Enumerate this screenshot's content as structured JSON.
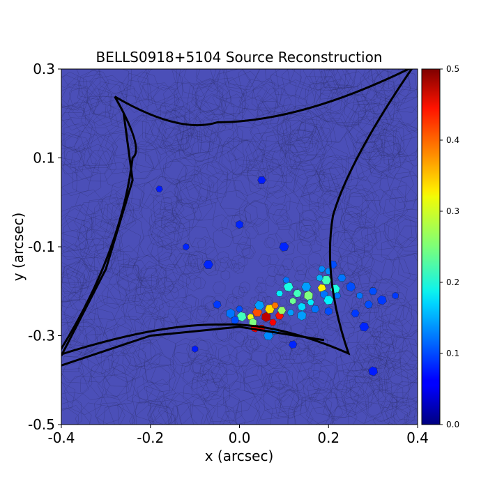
{
  "chart_data": {
    "type": "heatmap",
    "title": "BELLS0918+5104 Source Reconstruction",
    "xlabel": "x (arcsec)",
    "ylabel": "y (arcsec)",
    "xlim": [
      -0.4,
      0.4
    ],
    "ylim": [
      -0.5,
      0.3
    ],
    "xticks": [
      {
        "value": -0.4,
        "label": "-0.4"
      },
      {
        "value": -0.2,
        "label": "-0.2"
      },
      {
        "value": 0.0,
        "label": "0.0"
      },
      {
        "value": 0.2,
        "label": "0.2"
      },
      {
        "value": 0.4,
        "label": "0.4"
      }
    ],
    "yticks": [
      {
        "value": 0.3,
        "label": "0.3"
      },
      {
        "value": 0.1,
        "label": "0.1"
      },
      {
        "value": -0.1,
        "label": "-0.1"
      },
      {
        "value": -0.3,
        "label": "-0.3"
      },
      {
        "value": -0.5,
        "label": "-0.5"
      }
    ],
    "colorbar": {
      "colormap": "jet",
      "range": [
        0.0,
        0.5
      ],
      "ticks": [
        {
          "value": 0.5,
          "label": "0.5"
        },
        {
          "value": 0.4,
          "label": "0.4"
        },
        {
          "value": 0.3,
          "label": "0.3"
        },
        {
          "value": 0.2,
          "label": "0.2"
        },
        {
          "value": 0.1,
          "label": "0.1"
        },
        {
          "value": 0.0,
          "label": "0.0"
        }
      ]
    },
    "background_value": 0.05,
    "caustic": {
      "color": "#000000",
      "astroid": [
        [
          -0.28,
          0.238
        ],
        [
          -0.05,
          0.18
        ],
        [
          0.39,
          0.305
        ],
        [
          0.21,
          -0.03
        ],
        [
          0.245,
          -0.34
        ],
        [
          -0.04,
          -0.275
        ],
        [
          -0.41,
          -0.345
        ],
        [
          -0.24,
          0.1
        ],
        [
          -0.28,
          0.238
        ]
      ],
      "outer_segments": [
        [
          [
            0.19,
            -0.31
          ],
          [
            0.0,
            -0.28
          ],
          [
            -0.2,
            -0.3
          ],
          [
            -0.4,
            -0.367
          ]
        ],
        [
          [
            -0.4,
            -0.345
          ],
          [
            -0.3,
            -0.15
          ],
          [
            -0.24,
            0.05
          ],
          [
            -0.26,
            0.2
          ]
        ]
      ]
    },
    "source_pixels": [
      {
        "x": 0.05,
        "y": -0.283,
        "v": 0.46
      },
      {
        "x": 0.035,
        "y": -0.283,
        "v": 0.44
      },
      {
        "x": 0.06,
        "y": -0.258,
        "v": 0.47
      },
      {
        "x": 0.075,
        "y": -0.27,
        "v": 0.44
      },
      {
        "x": 0.09,
        "y": -0.255,
        "v": 0.43
      },
      {
        "x": 0.04,
        "y": -0.247,
        "v": 0.4
      },
      {
        "x": 0.025,
        "y": -0.258,
        "v": 0.3
      },
      {
        "x": 0.03,
        "y": -0.27,
        "v": 0.25
      },
      {
        "x": 0.068,
        "y": -0.24,
        "v": 0.33
      },
      {
        "x": 0.08,
        "y": -0.232,
        "v": 0.38
      },
      {
        "x": 0.095,
        "y": -0.243,
        "v": 0.26
      },
      {
        "x": 0.005,
        "y": -0.257,
        "v": 0.22
      },
      {
        "x": 0.12,
        "y": -0.222,
        "v": 0.24
      },
      {
        "x": 0.13,
        "y": -0.205,
        "v": 0.22
      },
      {
        "x": 0.11,
        "y": -0.19,
        "v": 0.2
      },
      {
        "x": 0.09,
        "y": -0.205,
        "v": 0.18
      },
      {
        "x": 0.14,
        "y": -0.235,
        "v": 0.17
      },
      {
        "x": 0.155,
        "y": -0.21,
        "v": 0.25
      },
      {
        "x": 0.16,
        "y": -0.225,
        "v": 0.18
      },
      {
        "x": 0.185,
        "y": -0.193,
        "v": 0.32
      },
      {
        "x": 0.195,
        "y": -0.175,
        "v": 0.22
      },
      {
        "x": 0.18,
        "y": -0.17,
        "v": 0.15
      },
      {
        "x": 0.19,
        "y": -0.207,
        "v": 0.12
      },
      {
        "x": 0.2,
        "y": -0.22,
        "v": 0.18
      },
      {
        "x": 0.2,
        "y": -0.155,
        "v": 0.13
      },
      {
        "x": 0.23,
        "y": -0.17,
        "v": 0.12
      },
      {
        "x": 0.25,
        "y": -0.19,
        "v": 0.1
      },
      {
        "x": 0.27,
        "y": -0.21,
        "v": 0.12
      },
      {
        "x": 0.29,
        "y": -0.23,
        "v": 0.1
      },
      {
        "x": 0.065,
        "y": -0.3,
        "v": 0.13
      },
      {
        "x": 0.08,
        "y": -0.29,
        "v": 0.12
      },
      {
        "x": -0.01,
        "y": -0.265,
        "v": 0.1
      },
      {
        "x": -0.02,
        "y": -0.25,
        "v": 0.12
      },
      {
        "x": 0.115,
        "y": -0.248,
        "v": 0.14
      },
      {
        "x": 0.17,
        "y": -0.24,
        "v": 0.12
      },
      {
        "x": 0.15,
        "y": -0.19,
        "v": 0.14
      },
      {
        "x": 0.105,
        "y": -0.175,
        "v": 0.12
      },
      {
        "x": 0.2,
        "y": -0.245,
        "v": 0.1
      },
      {
        "x": 0.215,
        "y": -0.195,
        "v": 0.2
      },
      {
        "x": 0.22,
        "y": -0.21,
        "v": 0.12
      },
      {
        "x": 0.3,
        "y": -0.2,
        "v": 0.1
      },
      {
        "x": 0.32,
        "y": -0.22,
        "v": 0.09
      },
      {
        "x": 0.35,
        "y": -0.21,
        "v": 0.09
      },
      {
        "x": 0.26,
        "y": -0.25,
        "v": 0.09
      },
      {
        "x": 0.045,
        "y": -0.232,
        "v": 0.14
      },
      {
        "x": 0.0,
        "y": -0.24,
        "v": 0.1
      },
      {
        "x": -0.05,
        "y": -0.23,
        "v": 0.09
      },
      {
        "x": 0.14,
        "y": -0.255,
        "v": 0.14
      },
      {
        "x": 0.185,
        "y": -0.15,
        "v": 0.13
      },
      {
        "x": 0.21,
        "y": -0.14,
        "v": 0.1
      },
      {
        "x": -0.07,
        "y": -0.14,
        "v": 0.08
      },
      {
        "x": -0.12,
        "y": -0.1,
        "v": 0.08
      },
      {
        "x": 0.0,
        "y": -0.05,
        "v": 0.08
      },
      {
        "x": 0.1,
        "y": -0.1,
        "v": 0.08
      },
      {
        "x": -0.18,
        "y": 0.03,
        "v": 0.075
      },
      {
        "x": 0.05,
        "y": 0.05,
        "v": 0.075
      },
      {
        "x": 0.3,
        "y": -0.38,
        "v": 0.075
      },
      {
        "x": -0.1,
        "y": -0.33,
        "v": 0.075
      },
      {
        "x": 0.12,
        "y": -0.32,
        "v": 0.08
      },
      {
        "x": 0.28,
        "y": -0.28,
        "v": 0.08
      }
    ]
  }
}
